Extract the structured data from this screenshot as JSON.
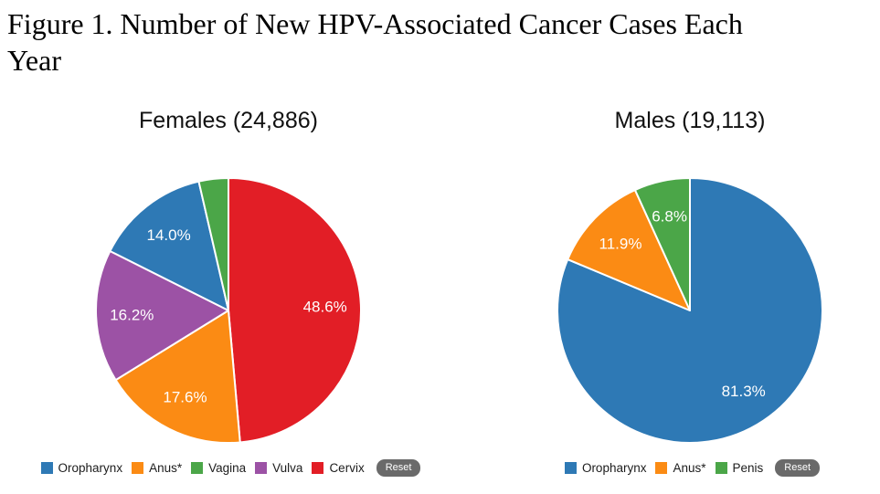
{
  "figure_title": "Figure 1. Number of New HPV-Associated Cancer Cases Each\nYear",
  "chart_data": [
    {
      "type": "pie",
      "title": "Females (24,886)",
      "group": "Females",
      "total": 24886,
      "start_angle_deg": 0,
      "direction": "clockwise",
      "legend_position": "bottom",
      "slices": [
        {
          "name": "Cervix",
          "value_pct": 48.6,
          "label": "48.6%",
          "color": "#E21E26"
        },
        {
          "name": "Anus*",
          "value_pct": 17.6,
          "label": "17.6%",
          "color": "#FB8B14"
        },
        {
          "name": "Vulva",
          "value_pct": 16.2,
          "label": "16.2%",
          "color": "#9C52A5"
        },
        {
          "name": "Oropharynx",
          "value_pct": 14.0,
          "label": "14.0%",
          "color": "#2E79B5"
        },
        {
          "name": "Vagina",
          "value_pct": 3.6,
          "label": "",
          "color": "#4BA648"
        }
      ],
      "legend": [
        {
          "label": "Oropharynx",
          "color": "#2E79B5"
        },
        {
          "label": "Anus*",
          "color": "#FB8B14"
        },
        {
          "label": "Vagina",
          "color": "#4BA648"
        },
        {
          "label": "Vulva",
          "color": "#9C52A5"
        },
        {
          "label": "Cervix",
          "color": "#E21E26"
        }
      ],
      "reset_label": "Reset"
    },
    {
      "type": "pie",
      "title": "Males (19,113)",
      "group": "Males",
      "total": 19113,
      "start_angle_deg": 0,
      "direction": "clockwise",
      "legend_position": "bottom",
      "slices": [
        {
          "name": "Oropharynx",
          "value_pct": 81.3,
          "label": "81.3%",
          "color": "#2E79B5"
        },
        {
          "name": "Anus*",
          "value_pct": 11.9,
          "label": "11.9%",
          "color": "#FB8B14"
        },
        {
          "name": "Penis",
          "value_pct": 6.8,
          "label": "6.8%",
          "color": "#4BA648"
        }
      ],
      "legend": [
        {
          "label": "Oropharynx",
          "color": "#2E79B5"
        },
        {
          "label": "Anus*",
          "color": "#FB8B14"
        },
        {
          "label": "Penis",
          "color": "#4BA648"
        }
      ],
      "reset_label": "Reset"
    }
  ],
  "colors": {
    "slice_label_text": "#FFFFFF",
    "reset_button_bg": "#6A6A6A",
    "reset_button_text": "#FFFFFF",
    "title_text": "#000000"
  }
}
